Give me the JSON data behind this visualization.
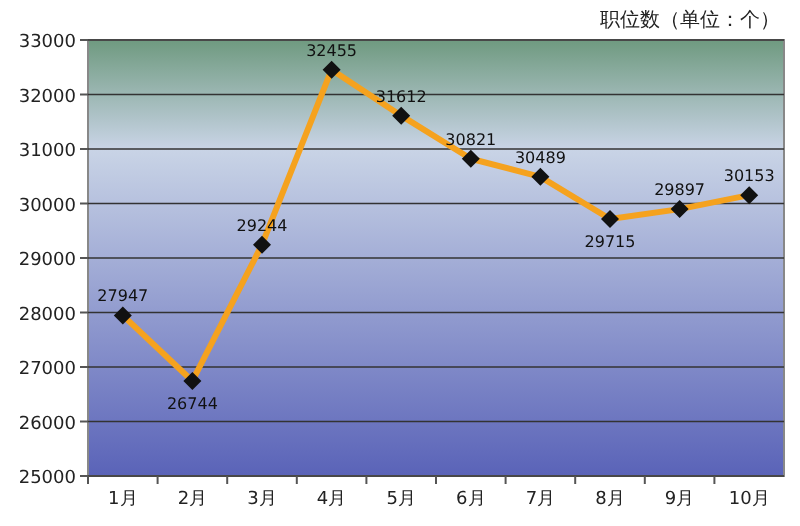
{
  "chart_data": {
    "type": "line",
    "title": "职位数（单位：个）",
    "categories": [
      "1月",
      "2月",
      "3月",
      "4月",
      "5月",
      "6月",
      "7月",
      "8月",
      "9月",
      "10月"
    ],
    "series": [
      {
        "color": "#f5a21e",
        "values": [
          27947,
          26744,
          29244,
          32455,
          31612,
          30821,
          30489,
          29715,
          29897,
          30153
        ]
      }
    ],
    "ylim": [
      25000,
      33000
    ],
    "yticks": [
      25000,
      26000,
      27000,
      28000,
      29000,
      30000,
      31000,
      32000,
      33000
    ],
    "grid": "y",
    "marker": "diamond",
    "data_labels": true
  }
}
